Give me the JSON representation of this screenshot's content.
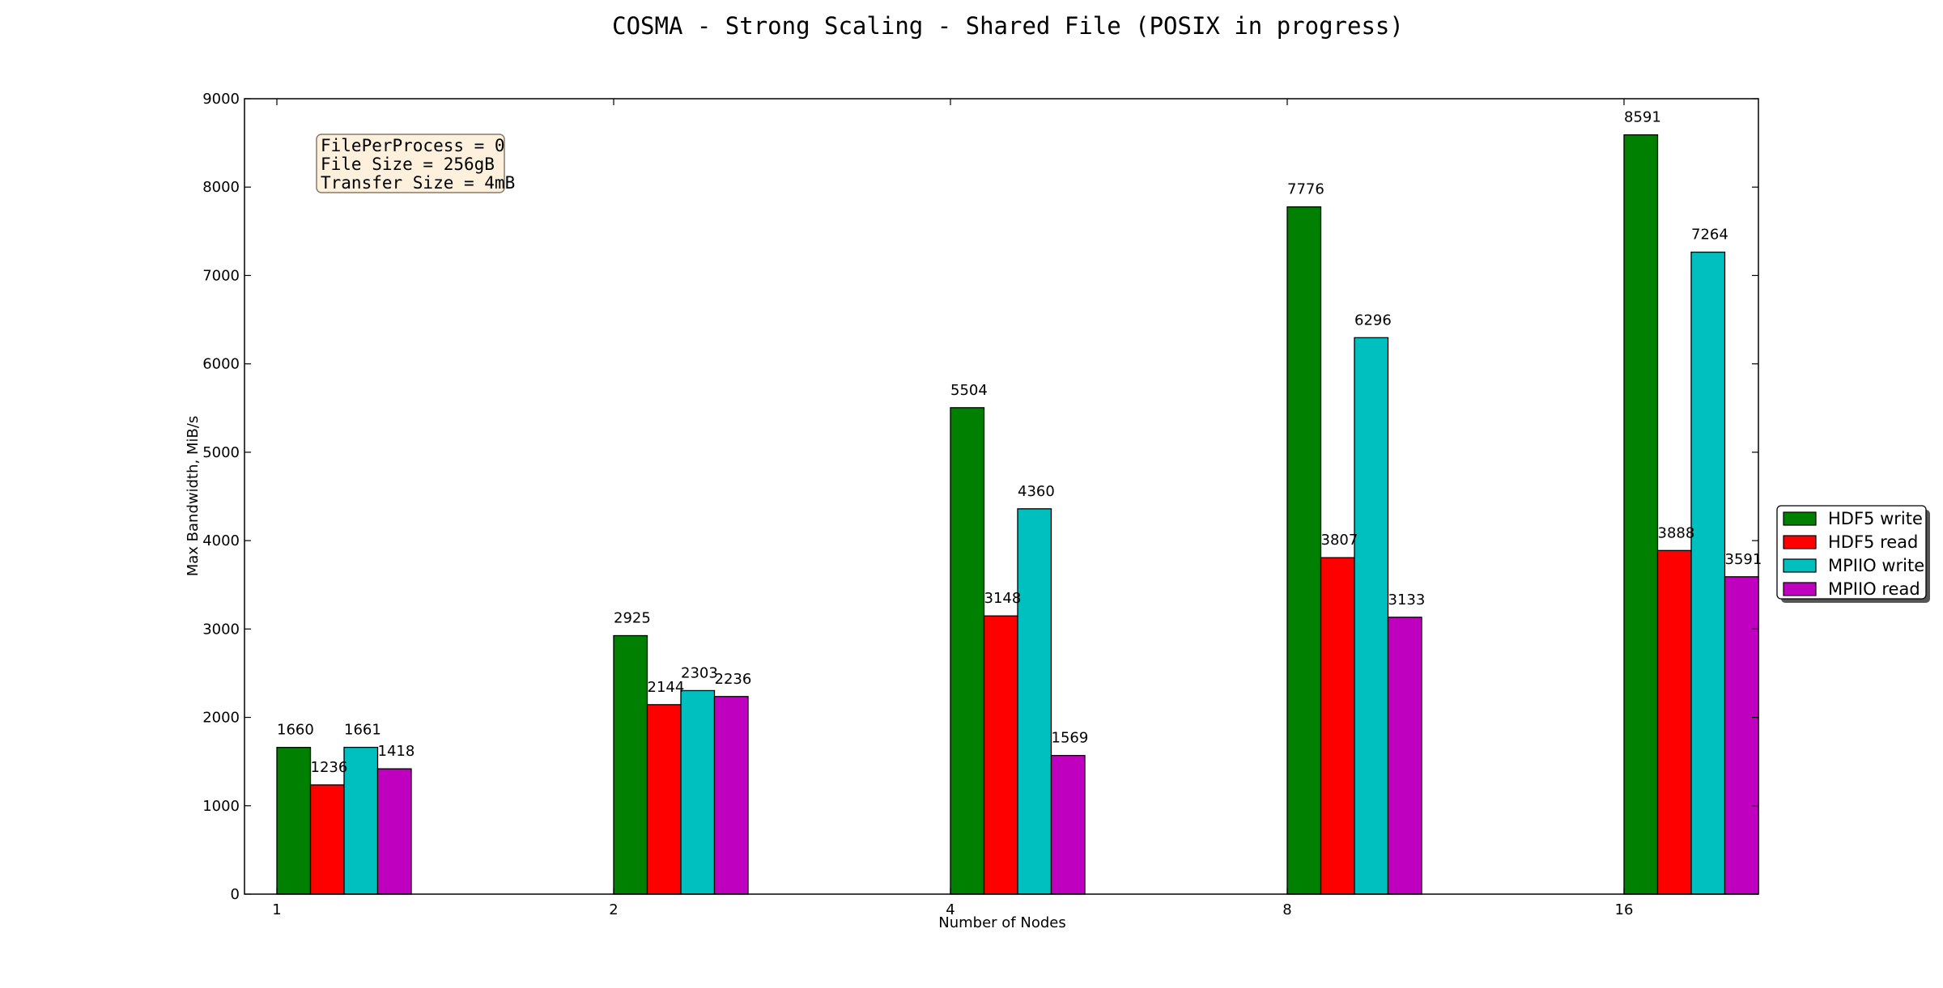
{
  "chart_data": {
    "type": "bar",
    "title": "COSMA - Strong Scaling - Shared File (POSIX in progress)",
    "xlabel": "Number of Nodes",
    "ylabel": "Max Bandwidth, MiB/s",
    "categories": [
      "1",
      "2",
      "4",
      "8",
      "16"
    ],
    "ylim": [
      0,
      9000
    ],
    "yticks": [
      "0",
      "1000",
      "2000",
      "3000",
      "4000",
      "5000",
      "6000",
      "7000",
      "8000",
      "9000"
    ],
    "series": [
      {
        "name": "HDF5 write",
        "color": "#008000",
        "values": [
          1660,
          2925,
          5504,
          7776,
          8591
        ]
      },
      {
        "name": "HDF5 read",
        "color": "#ff0000",
        "values": [
          1236,
          2144,
          3148,
          3807,
          3888
        ]
      },
      {
        "name": "MPIIO write",
        "color": "#00bfbf",
        "values": [
          1661,
          2303,
          4360,
          6296,
          7264
        ]
      },
      {
        "name": "MPIIO read",
        "color": "#bf00bf",
        "values": [
          1418,
          2236,
          1569,
          3133,
          3591
        ]
      }
    ],
    "legend_position": "right",
    "grid": false,
    "annotation": {
      "lines": [
        "FilePerProcess = 0",
        "File Size = 256gB",
        "Transfer Size = 4mB"
      ],
      "background": "#fdf0dc"
    }
  }
}
